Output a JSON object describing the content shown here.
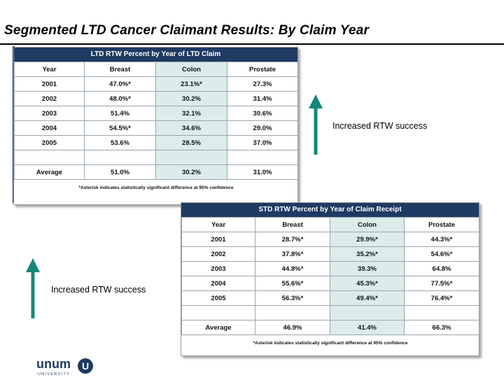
{
  "page_title": "Segmented LTD Cancer Claimant Results: By Claim Year",
  "ltd": {
    "header": "LTD RTW Percent by Year of LTD Claim",
    "columns": [
      "Year",
      "Breast",
      "Colon",
      "Prostate"
    ],
    "rows": [
      [
        "2001",
        "47.0%*",
        "23.1%*",
        "27.3%"
      ],
      [
        "2002",
        "48.0%*",
        "30.2%",
        "31.4%"
      ],
      [
        "2003",
        "51.4%",
        "32.1%",
        "30.6%"
      ],
      [
        "2004",
        "54.5%*",
        "34.6%",
        "29.0%"
      ],
      [
        "2005",
        "53.6%",
        "28.5%",
        "37.0%"
      ]
    ],
    "average": [
      "Average",
      "51.0%",
      "30.2%",
      "31.0%"
    ],
    "footnote": "*Asterisk indicates statistically significant difference at 95% confidence"
  },
  "std": {
    "header": "STD  RTW Percent by Year of Claim Receipt",
    "columns": [
      "Year",
      "Breast",
      "Colon",
      "Prostate"
    ],
    "rows": [
      [
        "2001",
        "28.7%*",
        "29.9%*",
        "44.3%*"
      ],
      [
        "2002",
        "37.8%*",
        "35.2%*",
        "54.6%*"
      ],
      [
        "2003",
        "44.8%*",
        "39.3%",
        "64.8%"
      ],
      [
        "2004",
        "55.6%*",
        "45.3%*",
        "77.5%*"
      ],
      [
        "2005",
        "56.3%*",
        "49.4%*",
        "76.4%*"
      ]
    ],
    "average": [
      "Average",
      "46.9%",
      "41.4%",
      "66.3%"
    ],
    "footnote": "*Asterisk indicates statistically significant difference at 95% confidence"
  },
  "annotations": {
    "upper_label": "Increased RTW  success",
    "lower_label": "Increased RTW  success",
    "arrow_color": "#17877a"
  },
  "logo": {
    "wordmark": "unum",
    "subtext": "UNIVERSITY",
    "badge": "U",
    "color": "#1f3a63"
  }
}
